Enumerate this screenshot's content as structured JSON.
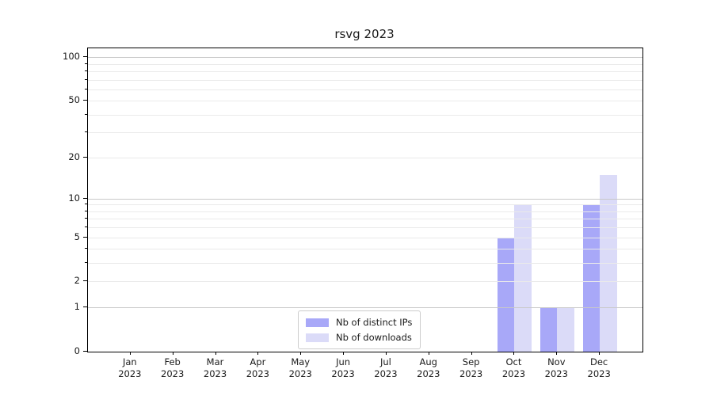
{
  "chart_data": {
    "type": "bar",
    "title": "rsvg 2023",
    "categories": [
      "Jan 2023",
      "Feb 2023",
      "Mar 2023",
      "Apr 2023",
      "May 2023",
      "Jun 2023",
      "Jul 2023",
      "Aug 2023",
      "Sep 2023",
      "Oct 2023",
      "Nov 2023",
      "Dec 2023"
    ],
    "series": [
      {
        "name": "Nb of distinct IPs",
        "color": "#a8a8f8",
        "values": [
          0,
          0,
          0,
          0,
          0,
          0,
          0,
          0,
          0,
          5,
          1,
          9
        ]
      },
      {
        "name": "Nb of downloads",
        "color": "#dbdbf8",
        "values": [
          0,
          0,
          0,
          0,
          0,
          0,
          0,
          0,
          0,
          9,
          1,
          15
        ]
      }
    ],
    "yscale": "log1p",
    "ylim": [
      0,
      115
    ],
    "y_tick_labels": [
      "100",
      "50",
      "20",
      "10",
      "5",
      "2",
      "1",
      "0"
    ],
    "y_tick_values": [
      100,
      50,
      20,
      10,
      5,
      2,
      1,
      0
    ],
    "y_major_gridlines": [
      100,
      10,
      1
    ],
    "y_minor_gridlines": [
      2,
      3,
      4,
      5,
      6,
      7,
      8,
      9,
      20,
      30,
      40,
      50,
      60,
      70,
      80,
      90
    ],
    "grid": "horizontal",
    "legend_position": "lower center (inside axes)"
  },
  "colors": {
    "background": "#ffffff",
    "spine": "#000000",
    "text": "#1a1a1a",
    "major_grid": "#c8c8c8",
    "minor_grid": "#eaeaea",
    "legend_border": "#cccccc"
  }
}
